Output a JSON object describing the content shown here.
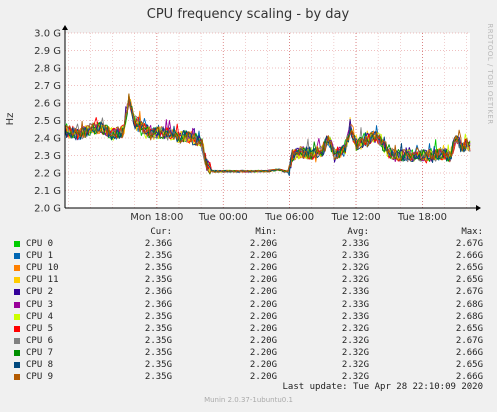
{
  "chart_data": {
    "type": "line",
    "title": "CPU frequency scaling - by day",
    "ylabel": "Hz",
    "ylim": [
      2.0,
      3.0
    ],
    "y_ticks": [
      "3.0 G",
      "2.9 G",
      "2.8 G",
      "2.7 G",
      "2.6 G",
      "2.5 G",
      "2.4 G",
      "2.3 G",
      "2.2 G",
      "2.1 G",
      "2.0 G"
    ],
    "y_tick_values": [
      3.0,
      2.9,
      2.8,
      2.7,
      2.6,
      2.5,
      2.4,
      2.3,
      2.2,
      2.1,
      2.0
    ],
    "x_ticks": [
      "Mon 18:00",
      "Tue 00:00",
      "Tue 06:00",
      "Tue 12:00",
      "Tue 18:00"
    ],
    "x_tick_hours": [
      18,
      24,
      30,
      36,
      42
    ],
    "xlim_hours": [
      9.7,
      46.3
    ],
    "profile": {
      "hours": [
        9.7,
        11,
        12,
        13,
        14,
        15,
        15.5,
        16,
        17,
        17.5,
        18,
        19,
        20,
        20.5,
        21,
        22,
        22.5,
        23,
        24,
        25,
        26,
        27,
        28,
        29,
        29.5,
        30,
        30.2,
        31,
        32,
        33,
        33.5,
        34,
        35,
        35.5,
        36,
        37,
        37.5,
        38,
        39,
        40,
        41,
        42,
        43,
        44,
        44.5,
        45,
        45.5,
        46,
        46.3
      ],
      "values": [
        2.44,
        2.42,
        2.45,
        2.46,
        2.42,
        2.44,
        2.63,
        2.48,
        2.45,
        2.42,
        2.43,
        2.43,
        2.4,
        2.41,
        2.4,
        2.38,
        2.25,
        2.21,
        2.21,
        2.21,
        2.21,
        2.21,
        2.21,
        2.22,
        2.21,
        2.21,
        2.3,
        2.32,
        2.31,
        2.33,
        2.4,
        2.31,
        2.33,
        2.45,
        2.36,
        2.38,
        2.41,
        2.4,
        2.31,
        2.3,
        2.3,
        2.3,
        2.3,
        2.31,
        2.29,
        2.4,
        2.33,
        2.37,
        2.35
      ]
    },
    "colors": [
      "#00cc00",
      "#0066b3",
      "#ff8000",
      "#ffcc00",
      "#330099",
      "#990099",
      "#ccff00",
      "#ff0000",
      "#808080",
      "#008f00",
      "#00487d",
      "#b35a00"
    ],
    "series_order_drawn": [
      0,
      1,
      2,
      3,
      4,
      5,
      6,
      7,
      8,
      9,
      10,
      11
    ],
    "grid": true
  },
  "watermark": "RRDTOOL / TOBI OETIKER",
  "legend": {
    "headers": {
      "cur": "Cur:",
      "min": "Min:",
      "avg": "Avg:",
      "max": "Max:"
    },
    "rows": [
      {
        "name": "CPU 0",
        "color": "#00cc00",
        "cur": "2.36G",
        "min": "2.20G",
        "avg": "2.33G",
        "max": "2.67G"
      },
      {
        "name": "CPU 1",
        "color": "#0066b3",
        "cur": "2.35G",
        "min": "2.20G",
        "avg": "2.33G",
        "max": "2.66G"
      },
      {
        "name": "CPU 10",
        "color": "#ff8000",
        "cur": "2.35G",
        "min": "2.20G",
        "avg": "2.32G",
        "max": "2.65G"
      },
      {
        "name": "CPU 11",
        "color": "#ffcc00",
        "cur": "2.35G",
        "min": "2.20G",
        "avg": "2.32G",
        "max": "2.65G"
      },
      {
        "name": "CPU 2",
        "color": "#330099",
        "cur": "2.36G",
        "min": "2.20G",
        "avg": "2.33G",
        "max": "2.67G"
      },
      {
        "name": "CPU 3",
        "color": "#990099",
        "cur": "2.36G",
        "min": "2.20G",
        "avg": "2.33G",
        "max": "2.68G"
      },
      {
        "name": "CPU 4",
        "color": "#ccff00",
        "cur": "2.35G",
        "min": "2.20G",
        "avg": "2.33G",
        "max": "2.68G"
      },
      {
        "name": "CPU 5",
        "color": "#ff0000",
        "cur": "2.35G",
        "min": "2.20G",
        "avg": "2.32G",
        "max": "2.65G"
      },
      {
        "name": "CPU 6",
        "color": "#808080",
        "cur": "2.35G",
        "min": "2.20G",
        "avg": "2.32G",
        "max": "2.67G"
      },
      {
        "name": "CPU 7",
        "color": "#008f00",
        "cur": "2.35G",
        "min": "2.20G",
        "avg": "2.32G",
        "max": "2.66G"
      },
      {
        "name": "CPU 8",
        "color": "#00487d",
        "cur": "2.35G",
        "min": "2.20G",
        "avg": "2.32G",
        "max": "2.65G"
      },
      {
        "name": "CPU 9",
        "color": "#b35a00",
        "cur": "2.35G",
        "min": "2.20G",
        "avg": "2.32G",
        "max": "2.66G"
      }
    ]
  },
  "last_update": "Last update: Tue Apr 28 22:10:09 2020",
  "footer": "Munin 2.0.37-1ubuntu0.1"
}
